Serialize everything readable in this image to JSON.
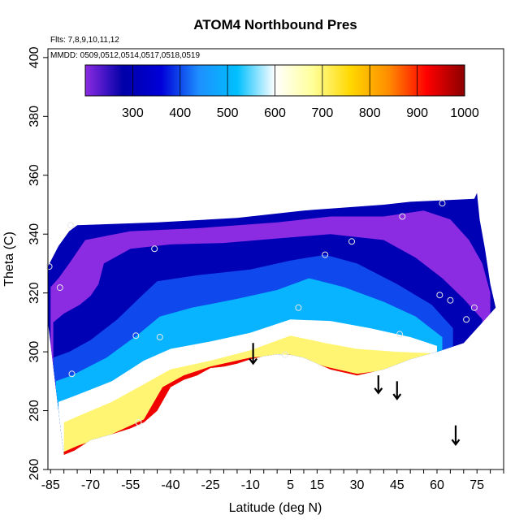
{
  "chart_data": {
    "type": "heatmap",
    "title": "ATOM4 Northbound Pres",
    "subtitle_flights": "Flts: 7,8,9,10,11,12",
    "subtitle_dates": "MMDD: 0509,0512,0514,0517,0518,0519",
    "xlabel": "Latitude (deg N)",
    "ylabel": "Theta (C)",
    "xlim": [
      -86,
      85
    ],
    "ylim": [
      260,
      403
    ],
    "x_ticks": [
      -85,
      -70,
      -55,
      -40,
      -25,
      -10,
      5,
      15,
      30,
      45,
      60,
      75
    ],
    "y_ticks": [
      260,
      280,
      300,
      320,
      340,
      360,
      380,
      400
    ],
    "colorbar": {
      "range": [
        200,
        1000
      ],
      "ticks": [
        300,
        400,
        500,
        600,
        700,
        800,
        900,
        1000
      ],
      "stops": [
        "#8b2be2",
        "#0000a8",
        "#0000d8",
        "#1e90ff",
        "#00bfff",
        "#ffffff",
        "#ffff99",
        "#ffd700",
        "#ff8c00",
        "#ff0000",
        "#8b0000"
      ]
    },
    "domain_top": [
      [
        -86,
        329
      ],
      [
        -82,
        336
      ],
      [
        -78,
        341
      ],
      [
        -75,
        343
      ],
      [
        -45,
        344
      ],
      [
        -15,
        345.5
      ],
      [
        10,
        348
      ],
      [
        40,
        350
      ],
      [
        50,
        351
      ],
      [
        62,
        351.5
      ],
      [
        74,
        352
      ],
      [
        75,
        354
      ],
      [
        76,
        345
      ],
      [
        78,
        335
      ],
      [
        80,
        323
      ],
      [
        82,
        315
      ]
    ],
    "domain_bottom": [
      [
        82,
        315
      ],
      [
        70,
        303
      ],
      [
        60,
        300
      ],
      [
        50,
        297.5
      ],
      [
        40,
        294
      ],
      [
        30,
        292
      ],
      [
        20,
        294
      ],
      [
        10,
        298
      ],
      [
        5,
        299
      ],
      [
        0,
        299.2
      ],
      [
        -5,
        298.5
      ],
      [
        -10,
        297.5
      ],
      [
        -15,
        296
      ],
      [
        -20,
        295
      ],
      [
        -25,
        294.5
      ],
      [
        -30,
        292
      ],
      [
        -35,
        290.5
      ],
      [
        -40,
        288
      ],
      [
        -45,
        280
      ],
      [
        -50,
        276
      ],
      [
        -55,
        274
      ],
      [
        -62,
        272
      ],
      [
        -70,
        270
      ],
      [
        -76,
        266.5
      ],
      [
        -80,
        265
      ],
      [
        -81,
        272
      ],
      [
        -82,
        280
      ],
      [
        -84,
        295
      ],
      [
        -86,
        310
      ]
    ],
    "pressure_bands": [
      {
        "value": 900,
        "points": [
          [
            -80,
            266
          ],
          [
            -75,
            268
          ],
          [
            -62,
            272
          ],
          [
            -50,
            277
          ],
          [
            -43,
            288
          ],
          [
            -35,
            292
          ],
          [
            -25,
            295
          ],
          [
            -10,
            298
          ],
          [
            5,
            299
          ],
          [
            18,
            295
          ],
          [
            30,
            292.5
          ],
          [
            38,
            293.5
          ]
        ]
      },
      {
        "value": 750,
        "points": [
          [
            -80,
            276
          ],
          [
            -75,
            278
          ],
          [
            -62,
            283
          ],
          [
            -50,
            289
          ],
          [
            -40,
            294
          ],
          [
            -25,
            297
          ],
          [
            -10,
            300.5
          ],
          [
            5,
            305.5
          ],
          [
            18,
            303
          ],
          [
            30,
            301
          ],
          [
            45,
            300
          ],
          [
            58,
            299.5
          ]
        ]
      },
      {
        "value": 650,
        "points": [
          [
            -82,
            283
          ],
          [
            -76,
            285
          ],
          [
            -62,
            290
          ],
          [
            -50,
            297
          ],
          [
            -40,
            301
          ],
          [
            -25,
            303.5
          ],
          [
            -10,
            306.5
          ],
          [
            5,
            311
          ],
          [
            20,
            310.5
          ],
          [
            35,
            308
          ],
          [
            50,
            305
          ],
          [
            60,
            302
          ]
        ]
      },
      {
        "value": 550,
        "points": [
          [
            -83,
            290
          ],
          [
            -77,
            292
          ],
          [
            -64,
            298
          ],
          [
            -52,
            306
          ],
          [
            -44,
            312
          ],
          [
            -32,
            315
          ],
          [
            -15,
            318
          ],
          [
            0,
            321
          ],
          [
            12,
            325
          ],
          [
            25,
            322
          ],
          [
            40,
            317
          ],
          [
            52,
            312
          ],
          [
            62,
            305
          ]
        ]
      },
      {
        "value": 450,
        "points": [
          [
            -84,
            298
          ],
          [
            -78,
            300
          ],
          [
            -70,
            304
          ],
          [
            -60,
            311
          ],
          [
            -52,
            318
          ],
          [
            -45,
            324
          ],
          [
            -30,
            326
          ],
          [
            -10,
            328
          ],
          [
            5,
            331
          ],
          [
            18,
            333
          ],
          [
            30,
            330
          ],
          [
            45,
            323
          ],
          [
            58,
            316
          ],
          [
            66,
            308
          ]
        ]
      },
      {
        "value": 350,
        "points": [
          [
            -84,
            310
          ],
          [
            -80,
            313
          ],
          [
            -74,
            316
          ],
          [
            -70,
            319
          ],
          [
            -67,
            323
          ],
          [
            -65,
            330
          ],
          [
            -55,
            335
          ],
          [
            -40,
            336.5
          ],
          [
            -20,
            337
          ],
          [
            0,
            338.5
          ],
          [
            20,
            340
          ],
          [
            40,
            338
          ],
          [
            52,
            332
          ],
          [
            62,
            325
          ],
          [
            70,
            318
          ],
          [
            77,
            311
          ]
        ]
      },
      {
        "value": 250,
        "points": [
          [
            -85,
            322
          ],
          [
            -82,
            325
          ],
          [
            -78,
            330
          ],
          [
            -72,
            338
          ],
          [
            -55,
            341
          ],
          [
            -30,
            342
          ],
          [
            0,
            344
          ],
          [
            20,
            346
          ],
          [
            40,
            346
          ],
          [
            55,
            348
          ],
          [
            65,
            345
          ],
          [
            72,
            338
          ],
          [
            77,
            330
          ],
          [
            80,
            320
          ]
        ]
      }
    ],
    "sample_points": [
      [
        -85.5,
        329
      ],
      [
        -81.5,
        321.8
      ],
      [
        -77.5,
        343
      ],
      [
        -77,
        292.5
      ],
      [
        -46,
        335
      ],
      [
        -53,
        305.5
      ],
      [
        -44,
        305
      ],
      [
        -52,
        276
      ],
      [
        8,
        315
      ],
      [
        3,
        299
      ],
      [
        18,
        333
      ],
      [
        28,
        337.5
      ],
      [
        47,
        346
      ],
      [
        62,
        350.5
      ],
      [
        61,
        319.3
      ],
      [
        65,
        317.5
      ],
      [
        46,
        306
      ],
      [
        71,
        311
      ],
      [
        74,
        315
      ]
    ],
    "arrows": [
      {
        "x": -9,
        "y_top": 303,
        "y_bottom": 296
      },
      {
        "x": 38,
        "y_top": 292,
        "y_bottom": 286
      },
      {
        "x": 45,
        "y_top": 290,
        "y_bottom": 284
      },
      {
        "x": 67,
        "y_top": 275,
        "y_bottom": 268.5
      }
    ]
  }
}
